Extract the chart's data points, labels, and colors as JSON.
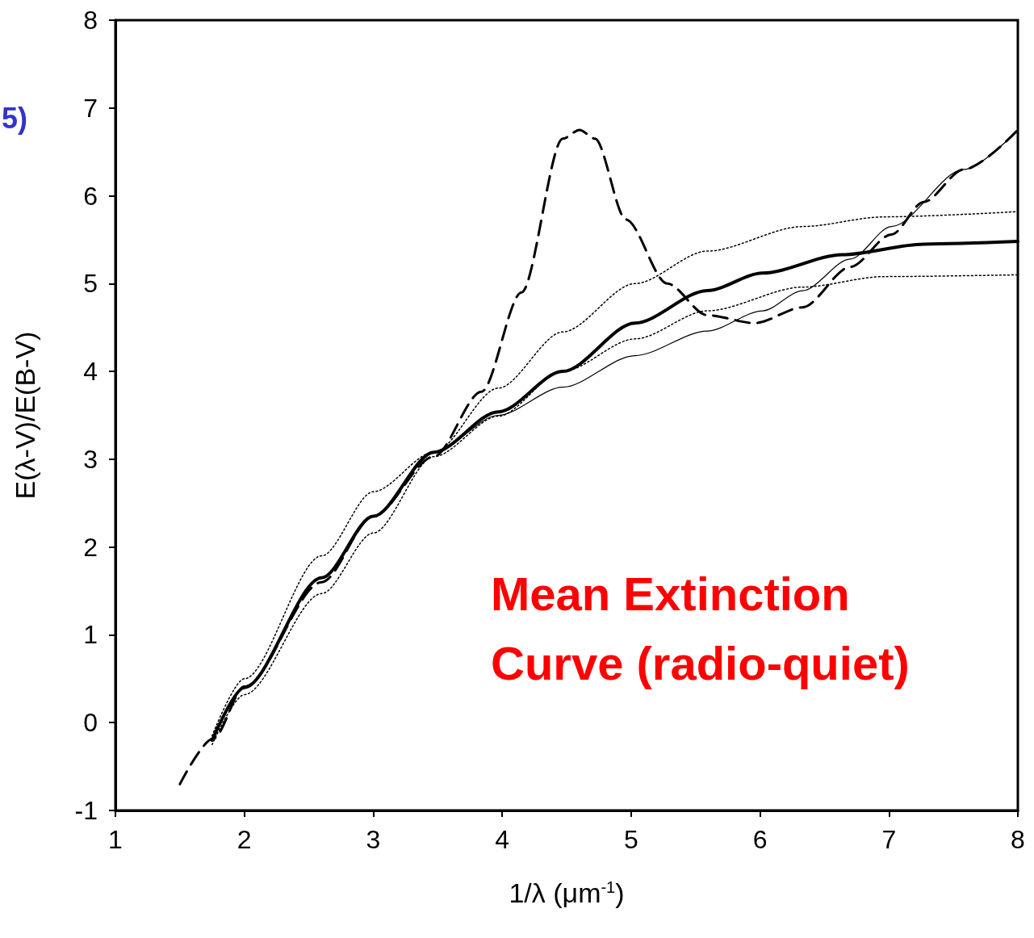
{
  "chart_data": {
    "type": "line",
    "xlabel": "1/λ (μm$^{-1}$)",
    "ylabel": "E(λ-V)/E(B-V)",
    "annotations": [
      "Mean Extinction\nCurve (radio-quiet)",
      "5)"
    ],
    "xlim": [
      1,
      8
    ],
    "xticks": [
      1,
      2,
      3,
      4,
      5,
      6,
      7,
      8
    ],
    "ylim": [
      -1,
      8
    ],
    "yticks": [
      -1,
      0,
      1,
      2,
      3,
      4,
      5,
      6,
      7,
      8
    ],
    "grid": false,
    "marker": "none",
    "series": [
      {
        "color": "#000000",
        "line_style": "dashed",
        "x": [
          1.5,
          1.76,
          2.0,
          2.6,
          3.0,
          3.47,
          3.84,
          4.15,
          4.47,
          4.6,
          4.72,
          4.96,
          5.28,
          5.59,
          5.96,
          6.33,
          6.7,
          7.02,
          7.27,
          7.58,
          8
        ],
        "values": [
          -0.7,
          -0.18,
          0.41,
          1.6,
          2.35,
          3.03,
          3.77,
          4.9,
          6.65,
          6.75,
          6.65,
          5.73,
          5.0,
          4.64,
          4.55,
          4.73,
          5.19,
          5.56,
          5.93,
          6.3,
          6.75
        ]
      },
      {
        "color": "#000000",
        "line_style": "solid",
        "x": [
          1.75,
          2.0,
          2.6,
          3.0,
          3.47,
          3.97,
          4.47,
          5.03,
          5.59,
          6.02,
          6.64,
          7.27,
          8
        ],
        "values": [
          -0.2,
          0.4,
          1.65,
          2.35,
          3.08,
          3.54,
          4.0,
          4.55,
          4.92,
          5.12,
          5.33,
          5.45,
          5.48
        ]
      },
      {
        "color": "#000000",
        "line_style": "solid",
        "x": [
          1.75,
          2.0,
          2.6,
          3.0,
          3.47,
          3.97,
          4.47,
          5.03,
          5.59,
          6.02,
          6.33,
          6.7,
          7.02,
          7.58,
          8
        ],
        "values": [
          -0.2,
          0.4,
          1.65,
          2.35,
          3.08,
          3.5,
          3.82,
          4.18,
          4.46,
          4.69,
          4.92,
          5.28,
          5.65,
          6.3,
          6.75
        ]
      },
      {
        "color": "#000000",
        "line_style": "dotted",
        "x": [
          1.75,
          2.0,
          2.6,
          3.0,
          3.47,
          3.97,
          4.47,
          5.03,
          5.59,
          6.33,
          6.96,
          8
        ],
        "values": [
          -0.15,
          0.5,
          1.9,
          2.63,
          3.08,
          3.81,
          4.45,
          5.0,
          5.37,
          5.65,
          5.76,
          5.82
        ]
      },
      {
        "color": "#000000",
        "line_style": "dotted",
        "x": [
          1.75,
          2.0,
          2.6,
          3.0,
          3.47,
          3.97,
          4.47,
          5.03,
          5.59,
          6.33,
          6.96,
          8
        ],
        "values": [
          -0.25,
          0.32,
          1.47,
          2.16,
          3.03,
          3.49,
          4.0,
          4.37,
          4.69,
          4.96,
          5.08,
          5.1
        ]
      }
    ]
  }
}
